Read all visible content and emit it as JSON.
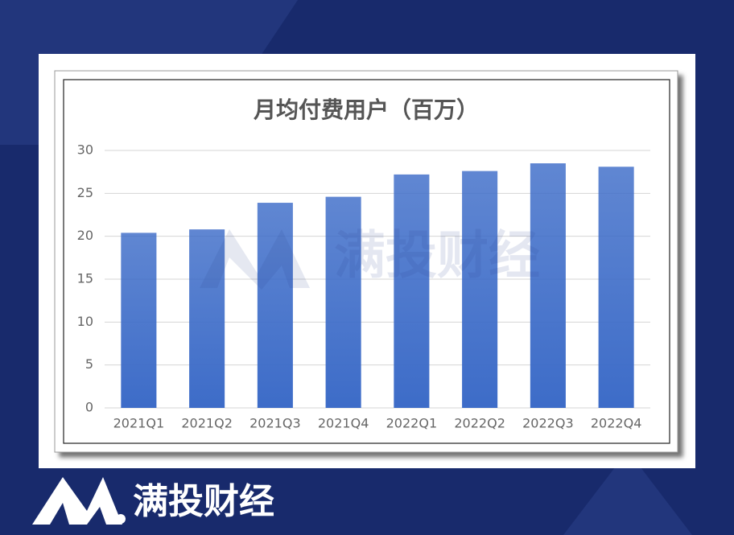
{
  "chart_data": {
    "type": "bar",
    "title": "月均付费用户（百万）",
    "categories": [
      "2021Q1",
      "2021Q2",
      "2021Q3",
      "2021Q4",
      "2022Q1",
      "2022Q2",
      "2022Q3",
      "2022Q4"
    ],
    "values": [
      20.4,
      20.8,
      23.9,
      24.6,
      27.2,
      27.6,
      28.5,
      28.1
    ],
    "color": "#3d6cc8",
    "ylim": [
      0,
      30
    ],
    "yticks": [
      0,
      5,
      10,
      15,
      20,
      25,
      30
    ],
    "grid": true
  },
  "watermark": "满投财经",
  "brand": "满投财经"
}
